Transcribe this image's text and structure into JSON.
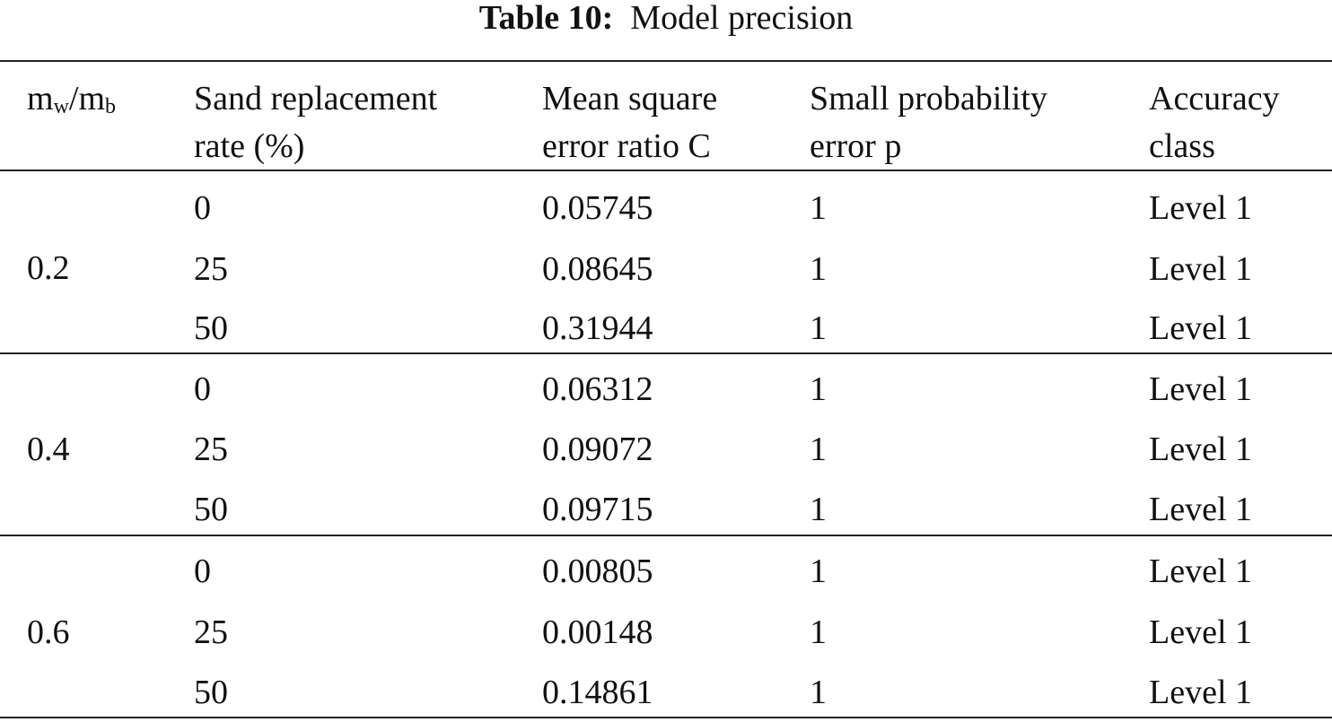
{
  "caption": {
    "label": "Table 10:",
    "title": "Model precision"
  },
  "table": {
    "header": [
      [
        "m",
        "w",
        "/m",
        "b"
      ],
      [
        "Sand replacement",
        "rate (%)"
      ],
      [
        "Mean square",
        "error ratio C"
      ],
      [
        "Small probability",
        "error p"
      ],
      [
        "Accuracy",
        "class"
      ]
    ],
    "groups": [
      {
        "ratio": "0.2",
        "rows": [
          [
            "0",
            "0.05745",
            "1",
            "Level 1"
          ],
          [
            "25",
            "0.08645",
            "1",
            "Level 1"
          ],
          [
            "50",
            "0.31944",
            "1",
            "Level 1"
          ]
        ]
      },
      {
        "ratio": "0.4",
        "rows": [
          [
            "0",
            "0.06312",
            "1",
            "Level 1"
          ],
          [
            "25",
            "0.09072",
            "1",
            "Level 1"
          ],
          [
            "50",
            "0.09715",
            "1",
            "Level 1"
          ]
        ]
      },
      {
        "ratio": "0.6",
        "rows": [
          [
            "0",
            "0.00805",
            "1",
            "Level 1"
          ],
          [
            "25",
            "0.00148",
            "1",
            "Level 1"
          ],
          [
            "50",
            "0.14861",
            "1",
            "Level 1"
          ]
        ]
      }
    ]
  }
}
